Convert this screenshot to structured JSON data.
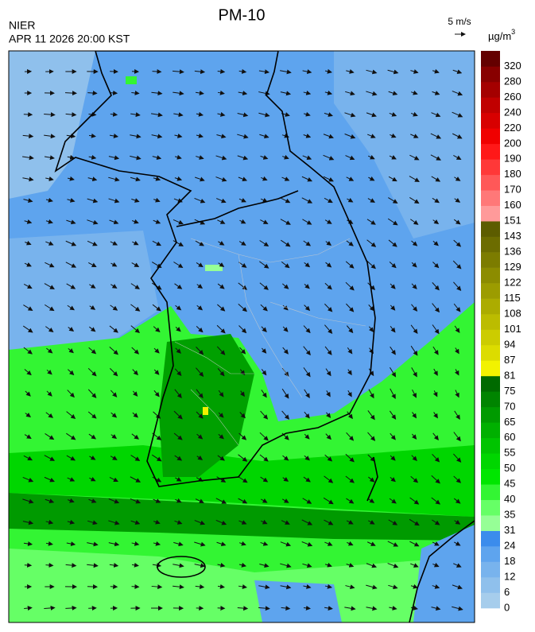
{
  "header": {
    "title": "PM-10",
    "source": "NIER",
    "datetime": "APR 11 2026 20:00 KST"
  },
  "wind_legend": {
    "label": "5 m/s"
  },
  "unit": {
    "text": "µg/m",
    "superscript": "3"
  },
  "colorbar": {
    "levels": [
      0,
      6,
      12,
      18,
      24,
      31,
      35,
      40,
      45,
      50,
      55,
      60,
      65,
      70,
      75,
      81,
      87,
      94,
      101,
      108,
      115,
      122,
      129,
      136,
      143,
      151,
      160,
      170,
      180,
      190,
      200,
      220,
      240,
      260,
      280,
      320
    ],
    "colors": [
      "#a6cdec",
      "#8fc0ec",
      "#78b3ed",
      "#5ea4ee",
      "#3b8cec",
      "#96ff96",
      "#66ff66",
      "#33f533",
      "#00e600",
      "#00d600",
      "#00c400",
      "#00b000",
      "#009a00",
      "#008400",
      "#006a00",
      "#f2f200",
      "#dcdc00",
      "#cccc00",
      "#bcbc00",
      "#acac00",
      "#9c9c00",
      "#8c8c00",
      "#7c7c00",
      "#6c6c00",
      "#5c5c00",
      "#ff9a9a",
      "#ff7878",
      "#ff5858",
      "#ff3838",
      "#ff1818",
      "#f00000",
      "#d80000",
      "#c00000",
      "#a40000",
      "#880000",
      "#640000"
    ]
  }
}
